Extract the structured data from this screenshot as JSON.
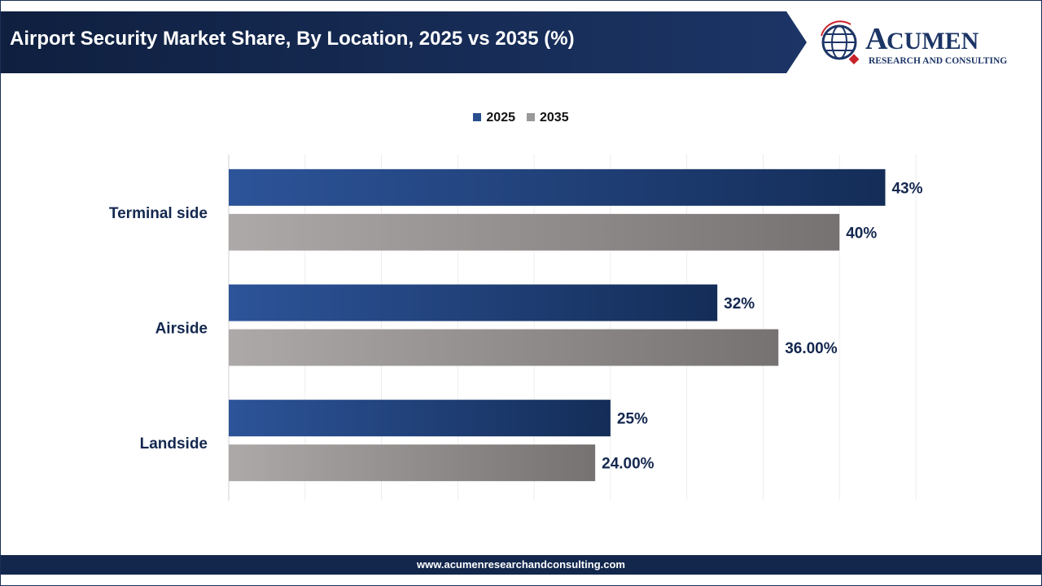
{
  "header": {
    "title": "Airport Security Market Share, By Location, 2025 vs 2035 (%)"
  },
  "logo": {
    "name": "ACUMEN",
    "tagline": "RESEARCH AND CONSULTING"
  },
  "footer": {
    "url": "www.acumenresearchandconsulting.com"
  },
  "colors": {
    "2025": "#2a4f8f",
    "2035": "#a9a5a4",
    "navy": "#13274d"
  },
  "chart_data": {
    "type": "bar",
    "orientation": "horizontal",
    "title": "Airport Security Market Share, By Location, 2025 vs 2035 (%)",
    "categories": [
      "Terminal side",
      "Airside",
      "Landside"
    ],
    "series": [
      {
        "name": "2025",
        "values": [
          43,
          32,
          25
        ],
        "labels": [
          "43%",
          "32%",
          "25%"
        ]
      },
      {
        "name": "2035",
        "values": [
          40,
          36,
          24
        ],
        "labels": [
          "40%",
          "36.00%",
          "24.00%"
        ]
      }
    ],
    "xlim": [
      0,
      45
    ],
    "grid": true,
    "legend": "top-center"
  }
}
